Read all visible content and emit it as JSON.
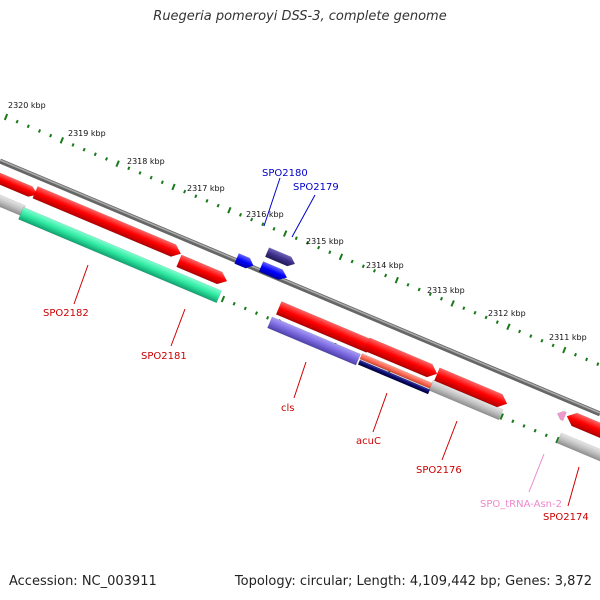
{
  "title": "Ruegeria pomeroyi DSS-3, complete genome",
  "footer": {
    "accession": "Accession: NC_003911",
    "summary": "Topology: circular; Length: 4,109,442 bp; Genes: 3,872"
  },
  "ruler": {
    "unit": "kbp",
    "ticks": [
      "2320 kbp",
      "2319 kbp",
      "2318 kbp",
      "2317 kbp",
      "2316 kbp",
      "2315 kbp",
      "2314 kbp",
      "2313 kbp",
      "2312 kbp",
      "2311 kbp"
    ]
  },
  "colors": {
    "gene_red": "#ff0000",
    "gene_green": "#2ee8a0",
    "gene_gray": "#bbbbbb",
    "gene_blue": "#0000ff",
    "gene_darkslate": "#3d2f8a",
    "gene_slate": "#7a6ae0",
    "gene_navy": "#0a0a6e",
    "gene_salmon": "#ff6a55",
    "gene_pink": "#ee99cc",
    "backbone": "#888888",
    "tick_green": "#1a7a1a"
  },
  "labels": [
    {
      "text": "SPO2180",
      "color": "#0000cc"
    },
    {
      "text": "SPO2179",
      "color": "#0000cc"
    },
    {
      "text": "SPO2182",
      "color": "#cc0000"
    },
    {
      "text": "SPO2181",
      "color": "#cc0000"
    },
    {
      "text": "cls",
      "color": "#cc0000"
    },
    {
      "text": "acuC",
      "color": "#cc0000"
    },
    {
      "text": "SPO2176",
      "color": "#cc0000"
    },
    {
      "text": "SPO_tRNA-Asn-2",
      "color": "#ee88cc"
    },
    {
      "text": "SPO2174",
      "color": "#cc0000"
    }
  ]
}
